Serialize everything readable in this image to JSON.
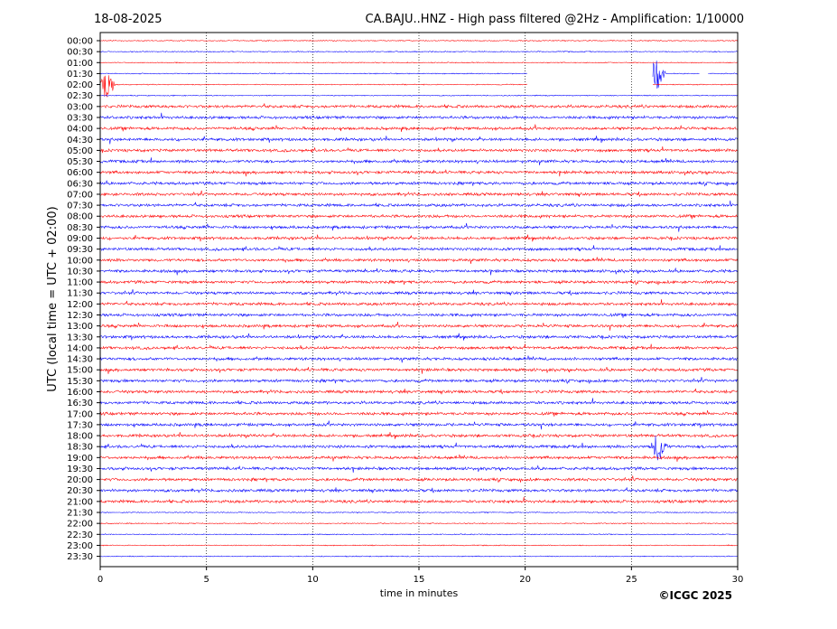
{
  "chart_data": {
    "type": "line",
    "date": "18-08-2025",
    "title": "CA.BAJU..HNZ - High pass filtered @2Hz - Amplification: 1/10000",
    "xlabel": "time in minutes",
    "ylabel": "UTC (local time = UTC + 02:00)",
    "xlim": [
      0,
      30
    ],
    "x_ticks": [
      0,
      5,
      10,
      15,
      20,
      25,
      30
    ],
    "x_gridlines": [
      5,
      10,
      15,
      20,
      25
    ],
    "row_labels": [
      "00:00",
      "00:30",
      "01:00",
      "01:30",
      "02:00",
      "02:30",
      "03:00",
      "03:30",
      "04:00",
      "04:30",
      "05:00",
      "05:30",
      "06:00",
      "06:30",
      "07:00",
      "07:30",
      "08:00",
      "08:30",
      "09:00",
      "09:30",
      "10:00",
      "10:30",
      "11:00",
      "11:30",
      "12:00",
      "12:30",
      "13:00",
      "13:30",
      "14:00",
      "14:30",
      "15:00",
      "15:30",
      "16:00",
      "16:30",
      "17:00",
      "17:30",
      "18:00",
      "18:30",
      "19:00",
      "19:30",
      "20:00",
      "20:30",
      "21:00",
      "21:30",
      "22:00",
      "22:30",
      "23:00",
      "23:30"
    ],
    "trace_colors": [
      "#ff0000",
      "#0000ff"
    ],
    "gaps": [
      {
        "row": "01:30",
        "from_min": 20.1,
        "to_min": 26.0
      },
      {
        "row": "01:30",
        "from_min": 28.2,
        "to_min": 28.6
      },
      {
        "row": "02:00",
        "from_min": 20.1,
        "to_min": 26.0
      }
    ],
    "events": [
      {
        "row": "02:00",
        "minute": 0.3
      },
      {
        "row": "01:30",
        "minute": 26.2
      },
      {
        "row": "18:30",
        "minute": 26.3
      }
    ]
  },
  "copyright": "©ICGC 2025"
}
